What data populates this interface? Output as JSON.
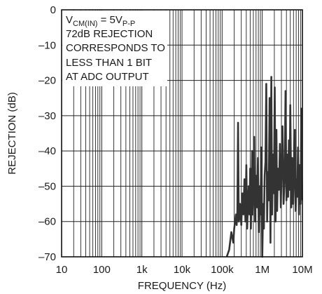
{
  "chart_data": {
    "type": "line",
    "title": "",
    "xlabel": "FREQUENCY (Hz)",
    "ylabel": "REJECTION (dB)",
    "x_scale": "log",
    "xlim": [
      10,
      10000000
    ],
    "ylim": [
      -70,
      0
    ],
    "grid": true,
    "legend": "none",
    "x_ticks": [
      10,
      100,
      1000,
      10000,
      100000,
      1000000,
      10000000
    ],
    "x_tick_labels": [
      "10",
      "100",
      "1k",
      "10k",
      "100k",
      "1M",
      "10M"
    ],
    "y_ticks": [
      0,
      -10,
      -20,
      -30,
      -40,
      -50,
      -60,
      -70
    ],
    "y_tick_labels": [
      "0",
      "–10",
      "–20",
      "–30",
      "–40",
      "–50",
      "–60",
      "–70"
    ],
    "annotation": {
      "line1_main": "V",
      "line1_sub": "CM(IN)",
      "line1_mid": " = 5V",
      "line1_sub2": "P-P",
      "line2": "72dB REJECTION",
      "line3": "CORRESPONDS TO",
      "line4": "LESS THAN 1 BIT",
      "line5": "AT ADC OUTPUT"
    },
    "series": [
      {
        "color": "#333333",
        "x": [
          130000,
          150000,
          170000,
          190000,
          200000,
          210000,
          220000,
          230000,
          240000,
          250000,
          260000,
          270000,
          280000,
          300000,
          320000,
          340000,
          360000,
          380000,
          400000,
          420000,
          440000,
          460000,
          480000,
          500000,
          520000,
          540000,
          560000,
          580000,
          600000,
          630000,
          660000,
          700000,
          740000,
          780000,
          820000,
          860000,
          900000,
          950000,
          1000000,
          1050000,
          1100000,
          1150000,
          1200000,
          1260000,
          1320000,
          1380000,
          1450000,
          1520000,
          1600000,
          1680000,
          1760000,
          1850000,
          1950000,
          2050000,
          2150000,
          2250000,
          2350000,
          2450000,
          2600000,
          2750000,
          2900000,
          3050000,
          3200000,
          3400000,
          3600000,
          3800000,
          4000000,
          4200000,
          4400000,
          4600000,
          4800000,
          5000000,
          5300000,
          5600000,
          5900000,
          6200000,
          6500000,
          6800000,
          7100000,
          7400000,
          7800000,
          8200000,
          8600000,
          9000000,
          9400000,
          9800000
        ],
        "y": [
          -70,
          -68,
          -63,
          -66,
          -62,
          -60,
          -58,
          -61,
          -57,
          -32,
          -60,
          -59,
          -55,
          -61,
          -52,
          -58,
          -48,
          -60,
          -44,
          -62,
          -55,
          -50,
          -58,
          -45,
          -62,
          -53,
          -40,
          -58,
          -52,
          -36,
          -60,
          -47,
          -56,
          -42,
          -63,
          -50,
          -58,
          -39,
          -70,
          -55,
          -62,
          -47,
          -43,
          -21,
          -60,
          -46,
          -54,
          -25,
          -66,
          -19,
          -58,
          -41,
          -52,
          -22,
          -60,
          -34,
          -57,
          -45,
          -51,
          -38,
          -56,
          -44,
          -33,
          -55,
          -48,
          -23,
          -54,
          -41,
          -53,
          -37,
          -51,
          -27,
          -56,
          -42,
          -55,
          -46,
          -34,
          -57,
          -48,
          -53,
          -39,
          -58,
          -44,
          -55,
          -28,
          -54
        ]
      }
    ]
  }
}
